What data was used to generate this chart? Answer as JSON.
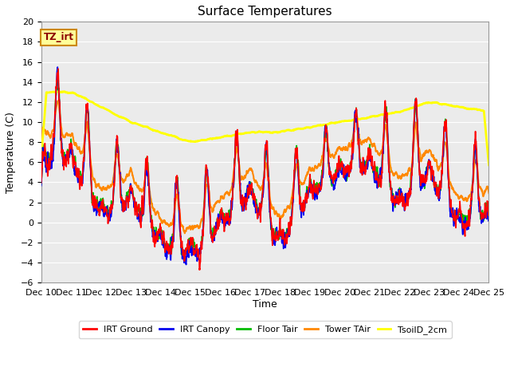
{
  "title": "Surface Temperatures",
  "xlabel": "Time",
  "ylabel": "Temperature (C)",
  "ylim": [
    -6,
    20
  ],
  "yticks": [
    -6,
    -4,
    -2,
    0,
    2,
    4,
    6,
    8,
    10,
    12,
    14,
    16,
    18,
    20
  ],
  "x_labels": [
    "Dec 10",
    "Dec 11",
    "Dec 12",
    "Dec 13",
    "Dec 14",
    "Dec 15",
    "Dec 16",
    "Dec 17",
    "Dec 18",
    "Dec 19",
    "Dec 20",
    "Dec 21",
    "Dec 22",
    "Dec 23",
    "Dec 24",
    "Dec 25"
  ],
  "annotation_text": "TZ_irt",
  "annotation_bg": "#ffff99",
  "annotation_border": "#cc8800",
  "plot_bg": "#ebebeb",
  "series_colors": {
    "IRT Ground": "#ff0000",
    "IRT Canopy": "#0000ee",
    "Floor Tair": "#00bb00",
    "Tower TAir": "#ff8800",
    "TsoilD_2cm": "#ffff00"
  },
  "series_linewidths": {
    "IRT Ground": 1.2,
    "IRT Canopy": 1.2,
    "Floor Tair": 1.2,
    "Tower TAir": 1.5,
    "TsoilD_2cm": 2.0
  },
  "title_fontsize": 11,
  "axis_fontsize": 9,
  "tick_fontsize": 8
}
